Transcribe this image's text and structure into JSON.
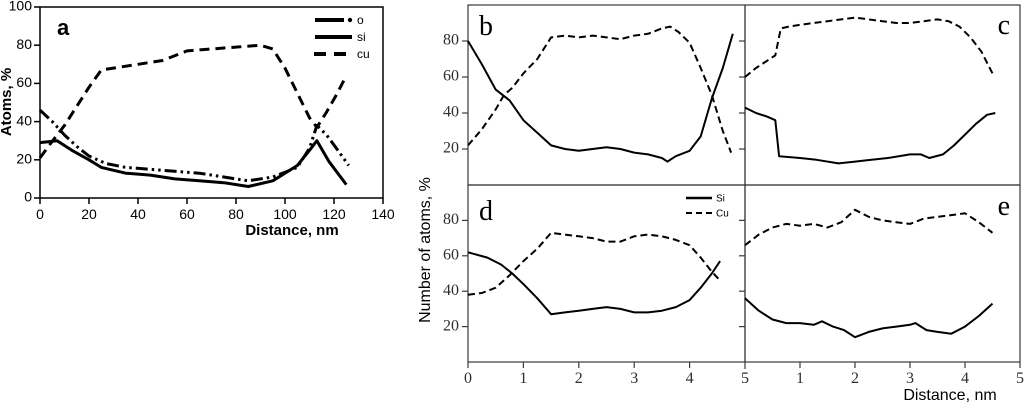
{
  "figure": {
    "background": "#ffffff",
    "ink": "#000000",
    "border_color": "#3a3a3a",
    "tick_text_color": "#2e2e2e"
  },
  "chart_data": [
    {
      "id": "a",
      "type": "line",
      "panel_label": "a",
      "xlabel": "Distance, nm",
      "ylabel": "Atoms, %",
      "xlim": [
        0,
        140
      ],
      "ylim": [
        0,
        100
      ],
      "xticks": [
        0,
        20,
        40,
        60,
        80,
        100,
        120,
        140
      ],
      "yticks": [
        0,
        20,
        40,
        60,
        80,
        100
      ],
      "grid": false,
      "legend_position": "top-right-inside",
      "legend": [
        {
          "label": "o",
          "style": "dashdot"
        },
        {
          "label": "si",
          "style": "solid"
        },
        {
          "label": "cu",
          "style": "dashed"
        }
      ],
      "series": [
        {
          "name": "o",
          "style": "dashdot",
          "x": [
            0,
            5,
            10,
            15,
            20,
            27,
            35,
            45,
            55,
            65,
            75,
            85,
            95,
            105,
            110,
            113,
            117,
            121,
            126
          ],
          "y": [
            46,
            40,
            33,
            27,
            22,
            18,
            16,
            15,
            14,
            13,
            11,
            9,
            11,
            16,
            26,
            38,
            33,
            26,
            17
          ]
        },
        {
          "name": "si",
          "style": "solid",
          "x": [
            0,
            7,
            13,
            20,
            25,
            35,
            45,
            55,
            65,
            75,
            85,
            95,
            105,
            110,
            113,
            118,
            125
          ],
          "y": [
            29,
            30,
            25,
            20,
            16,
            13,
            12,
            10,
            9,
            8,
            6,
            9,
            17,
            25,
            30,
            19,
            7
          ]
        },
        {
          "name": "cu",
          "style": "dashed",
          "x": [
            0,
            4,
            10,
            15,
            20,
            25,
            30,
            40,
            50,
            60,
            70,
            80,
            90,
            95,
            100,
            105,
            110,
            113,
            117,
            121,
            125
          ],
          "y": [
            21,
            28,
            38,
            48,
            58,
            67,
            68,
            70,
            72,
            77,
            78,
            79,
            80,
            78,
            68,
            55,
            42,
            37,
            45,
            54,
            64
          ]
        }
      ]
    },
    {
      "id": "bcde",
      "type": "line",
      "xlabel": "Distance, nm",
      "ylabel": "Number of atoms, %",
      "xlim": [
        0,
        5
      ],
      "ylim": [
        0,
        100
      ],
      "yticks": [
        20,
        40,
        60,
        80
      ],
      "xtick_labels_left_panel": [
        "0",
        "1",
        "2",
        "3",
        "4"
      ],
      "xtick_label_shared": "5",
      "xtick_labels_right_panel": [
        "1",
        "2",
        "3",
        "4",
        "5"
      ],
      "grid": false,
      "legend_position": "top-right-of-panel-d",
      "legend": [
        {
          "label": "Si",
          "style": "solid"
        },
        {
          "label": "Cu",
          "style": "dashed"
        }
      ],
      "panels": [
        {
          "label": "b",
          "grid_pos": "top-left",
          "series": [
            {
              "name": "Si",
              "style": "solid",
              "x": [
                0,
                0.25,
                0.5,
                0.75,
                1,
                1.25,
                1.5,
                1.75,
                2,
                2.25,
                2.5,
                2.75,
                3,
                3.25,
                3.5,
                3.6,
                3.75,
                4,
                4.2,
                4.4,
                4.6,
                4.78
              ],
              "y": [
                80,
                67,
                53,
                47,
                36,
                29,
                22,
                20,
                19,
                20,
                21,
                20,
                18,
                17,
                15,
                13,
                16,
                19,
                27,
                48,
                65,
                84
              ]
            },
            {
              "name": "Cu",
              "style": "dashed",
              "x": [
                0,
                0.25,
                0.5,
                0.65,
                0.8,
                1,
                1.25,
                1.5,
                1.75,
                2,
                2.25,
                2.5,
                2.75,
                3,
                3.25,
                3.5,
                3.65,
                3.8,
                4,
                4.2,
                4.4,
                4.6,
                4.75
              ],
              "y": [
                22,
                31,
                42,
                50,
                54,
                62,
                70,
                82,
                83,
                82,
                83,
                82,
                81,
                83,
                84,
                87,
                88,
                85,
                79,
                65,
                50,
                30,
                18
              ]
            }
          ]
        },
        {
          "label": "c",
          "grid_pos": "top-right",
          "series": [
            {
              "name": "Si",
              "style": "solid",
              "x": [
                0,
                0.2,
                0.4,
                0.55,
                0.62,
                1,
                1.3,
                1.7,
                2,
                2.3,
                2.6,
                3,
                3.2,
                3.35,
                3.6,
                3.8,
                4,
                4.2,
                4.4,
                4.55
              ],
              "y": [
                43,
                40,
                38,
                36,
                16,
                15,
                14,
                12,
                13,
                14,
                15,
                17,
                17,
                15,
                17,
                22,
                28,
                34,
                39,
                40
              ]
            },
            {
              "name": "Cu",
              "style": "dashed",
              "x": [
                0,
                0.2,
                0.4,
                0.55,
                0.65,
                0.8,
                1,
                1.25,
                1.5,
                1.75,
                2,
                2.25,
                2.5,
                2.75,
                3,
                3.25,
                3.5,
                3.7,
                3.9,
                4.1,
                4.3,
                4.5
              ],
              "y": [
                60,
                65,
                69,
                72,
                87,
                88,
                89,
                90,
                91,
                92,
                93,
                92,
                91,
                90,
                90,
                91,
                92,
                91,
                88,
                82,
                74,
                62
              ]
            }
          ]
        },
        {
          "label": "d",
          "grid_pos": "bottom-left",
          "series": [
            {
              "name": "Si",
              "style": "solid",
              "x": [
                0,
                0.35,
                0.6,
                0.8,
                1,
                1.25,
                1.5,
                1.75,
                2,
                2.25,
                2.5,
                2.75,
                3,
                3.25,
                3.5,
                3.75,
                4,
                4.2,
                4.4,
                4.55
              ],
              "y": [
                62,
                59,
                55,
                50,
                44,
                36,
                27,
                28,
                29,
                30,
                31,
                30,
                28,
                28,
                29,
                31,
                35,
                42,
                50,
                57
              ]
            },
            {
              "name": "Cu",
              "style": "dashed",
              "x": [
                0,
                0.25,
                0.5,
                0.75,
                1,
                1.25,
                1.5,
                1.75,
                2,
                2.25,
                2.5,
                2.75,
                3,
                3.25,
                3.5,
                3.75,
                4,
                4.2,
                4.4,
                4.55
              ],
              "y": [
                38,
                39,
                42,
                49,
                57,
                64,
                73,
                72,
                71,
                70,
                68,
                68,
                71,
                72,
                71,
                69,
                66,
                59,
                51,
                46
              ]
            }
          ]
        },
        {
          "label": "e",
          "grid_pos": "bottom-right",
          "series": [
            {
              "name": "Si",
              "style": "solid",
              "x": [
                0,
                0.25,
                0.5,
                0.75,
                1,
                1.25,
                1.4,
                1.6,
                1.8,
                2,
                2.25,
                2.5,
                2.75,
                3,
                3.1,
                3.3,
                3.5,
                3.75,
                4,
                4.25,
                4.5
              ],
              "y": [
                36,
                29,
                24,
                22,
                22,
                21,
                23,
                20,
                18,
                14,
                17,
                19,
                20,
                21,
                22,
                18,
                17,
                16,
                20,
                26,
                33
              ]
            },
            {
              "name": "Cu",
              "style": "dashed",
              "x": [
                0,
                0.25,
                0.5,
                0.75,
                1,
                1.25,
                1.5,
                1.75,
                2,
                2.25,
                2.5,
                2.75,
                3,
                3.25,
                3.5,
                3.75,
                4,
                4.25,
                4.5
              ],
              "y": [
                66,
                72,
                76,
                78,
                77,
                78,
                76,
                79,
                86,
                82,
                80,
                79,
                78,
                81,
                82,
                83,
                84,
                79,
                73
              ]
            }
          ]
        }
      ]
    }
  ]
}
